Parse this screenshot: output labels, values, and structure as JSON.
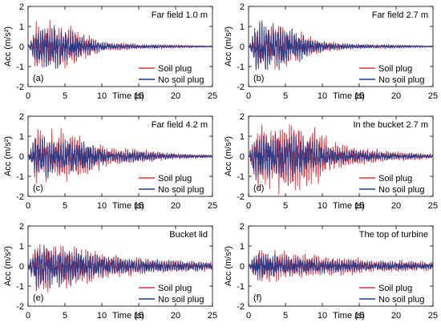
{
  "colors": {
    "soil_plug": "#e8303a",
    "no_soil_plug": "#1f3d8f",
    "axis": "#000000"
  },
  "chart_data": [
    {
      "type": "line",
      "panel_label": "(a)",
      "title": "Far field 1.0 m",
      "xlabel": "Time (s)",
      "ylabel": "Acc (m/s²)",
      "xlim": [
        0,
        25
      ],
      "ylim": [
        -2,
        2
      ],
      "xticks": [
        0,
        5,
        10,
        15,
        20,
        25
      ],
      "yticks": [
        -2,
        -1,
        0,
        1,
        2
      ],
      "legend": "bottom-right",
      "series": [
        {
          "name": "Soil plug",
          "color_key": "soil_plug",
          "peak": 1.3,
          "seed": 11,
          "envelope": [
            [
              0,
              0
            ],
            [
              0.4,
              0.3
            ],
            [
              1,
              1.2
            ],
            [
              3,
              1.0
            ],
            [
              5,
              0.9
            ],
            [
              8,
              0.5
            ],
            [
              10,
              0.2
            ],
            [
              13,
              0.15
            ],
            [
              15,
              0.1
            ],
            [
              20,
              0.08
            ],
            [
              25,
              0.03
            ]
          ]
        },
        {
          "name": "No soil plug",
          "color_key": "no_soil_plug",
          "peak": 1.1,
          "seed": 12,
          "envelope": [
            [
              0,
              0
            ],
            [
              0.4,
              0.3
            ],
            [
              1,
              1.0
            ],
            [
              3,
              1.0
            ],
            [
              5,
              0.85
            ],
            [
              8,
              0.45
            ],
            [
              10,
              0.2
            ],
            [
              13,
              0.12
            ],
            [
              15,
              0.1
            ],
            [
              20,
              0.07
            ],
            [
              25,
              0.03
            ]
          ]
        }
      ]
    },
    {
      "type": "line",
      "panel_label": "(b)",
      "title": "Far field 2.7 m",
      "xlabel": "Time (s)",
      "ylabel": "Acc (m/s²)",
      "xlim": [
        0,
        25
      ],
      "ylim": [
        -2,
        2
      ],
      "xticks": [
        0,
        5,
        10,
        15,
        20,
        25
      ],
      "yticks": [
        -2,
        -1,
        0,
        1,
        2
      ],
      "legend": "bottom-right",
      "series": [
        {
          "name": "Soil plug",
          "color_key": "soil_plug",
          "peak": 1.3,
          "seed": 21,
          "envelope": [
            [
              0,
              0
            ],
            [
              0.4,
              0.3
            ],
            [
              1,
              1.2
            ],
            [
              3,
              1.0
            ],
            [
              5,
              0.9
            ],
            [
              8,
              0.5
            ],
            [
              10,
              0.25
            ],
            [
              13,
              0.15
            ],
            [
              15,
              0.1
            ],
            [
              20,
              0.08
            ],
            [
              25,
              0.03
            ]
          ]
        },
        {
          "name": "No soil plug",
          "color_key": "no_soil_plug",
          "peak": 1.2,
          "seed": 22,
          "envelope": [
            [
              0,
              0
            ],
            [
              0.4,
              0.3
            ],
            [
              1,
              1.1
            ],
            [
              3,
              1.0
            ],
            [
              5,
              0.85
            ],
            [
              8,
              0.45
            ],
            [
              10,
              0.2
            ],
            [
              13,
              0.12
            ],
            [
              15,
              0.1
            ],
            [
              20,
              0.07
            ],
            [
              25,
              0.03
            ]
          ]
        }
      ]
    },
    {
      "type": "line",
      "panel_label": "(c)",
      "title": "Far field 4.2 m",
      "xlabel": "Time (s)",
      "ylabel": "Acc (m/s²)",
      "xlim": [
        0,
        25
      ],
      "ylim": [
        -2,
        2
      ],
      "xticks": [
        0,
        5,
        10,
        15,
        20,
        25
      ],
      "yticks": [
        -2,
        -1,
        0,
        1,
        2
      ],
      "legend": "bottom-right",
      "series": [
        {
          "name": "Soil plug",
          "color_key": "soil_plug",
          "peak": 1.4,
          "seed": 31,
          "envelope": [
            [
              0,
              0
            ],
            [
              0.4,
              0.4
            ],
            [
              1,
              1.1
            ],
            [
              3,
              1.1
            ],
            [
              6,
              1.0
            ],
            [
              9,
              0.7
            ],
            [
              11,
              0.35
            ],
            [
              14,
              0.3
            ],
            [
              16,
              0.25
            ],
            [
              20,
              0.12
            ],
            [
              25,
              0.06
            ]
          ]
        },
        {
          "name": "No soil plug",
          "color_key": "no_soil_plug",
          "peak": 1.1,
          "seed": 32,
          "envelope": [
            [
              0,
              0
            ],
            [
              0.4,
              0.4
            ],
            [
              1,
              1.0
            ],
            [
              3,
              1.0
            ],
            [
              6,
              0.9
            ],
            [
              9,
              0.6
            ],
            [
              11,
              0.3
            ],
            [
              14,
              0.3
            ],
            [
              16,
              0.25
            ],
            [
              20,
              0.12
            ],
            [
              25,
              0.06
            ]
          ]
        }
      ]
    },
    {
      "type": "line",
      "panel_label": "(d)",
      "title": "In the bucket 2.7 m",
      "xlabel": "Time (s)",
      "ylabel": "Acc (m/s²)",
      "xlim": [
        0,
        25
      ],
      "ylim": [
        -2,
        2
      ],
      "xticks": [
        0,
        5,
        10,
        15,
        20,
        25
      ],
      "yticks": [
        -2,
        -1,
        0,
        1,
        2
      ],
      "legend": "bottom-right",
      "series": [
        {
          "name": "Soil plug",
          "color_key": "soil_plug",
          "peak": 1.9,
          "seed": 41,
          "envelope": [
            [
              0,
              0
            ],
            [
              0.4,
              0.5
            ],
            [
              1,
              1.2
            ],
            [
              4,
              1.4
            ],
            [
              6,
              1.5
            ],
            [
              9,
              1.2
            ],
            [
              11,
              0.6
            ],
            [
              14,
              0.4
            ],
            [
              16,
              0.3
            ],
            [
              20,
              0.2
            ],
            [
              25,
              0.1
            ]
          ]
        },
        {
          "name": "No soil plug",
          "color_key": "no_soil_plug",
          "peak": 1.2,
          "seed": 42,
          "envelope": [
            [
              0,
              0
            ],
            [
              0.4,
              0.5
            ],
            [
              1,
              1.1
            ],
            [
              4,
              1.1
            ],
            [
              6,
              1.0
            ],
            [
              9,
              0.8
            ],
            [
              11,
              0.45
            ],
            [
              14,
              0.3
            ],
            [
              16,
              0.25
            ],
            [
              20,
              0.15
            ],
            [
              25,
              0.08
            ]
          ]
        }
      ]
    },
    {
      "type": "line",
      "panel_label": "(e)",
      "title": "Bucket lid",
      "xlabel": "Time (s)",
      "ylabel": "Acc (m/s²)",
      "xlim": [
        0,
        25
      ],
      "ylim": [
        -2,
        2
      ],
      "xticks": [
        0,
        5,
        10,
        15,
        20,
        25
      ],
      "yticks": [
        -2,
        -1,
        0,
        1,
        2
      ],
      "legend": "bottom-right",
      "series": [
        {
          "name": "Soil plug",
          "color_key": "soil_plug",
          "peak": 1.3,
          "seed": 51,
          "envelope": [
            [
              0,
              0
            ],
            [
              0.4,
              0.5
            ],
            [
              1,
              1.2
            ],
            [
              4,
              1.0
            ],
            [
              7,
              0.9
            ],
            [
              10,
              0.6
            ],
            [
              13,
              0.45
            ],
            [
              15,
              0.4
            ],
            [
              18,
              0.3
            ],
            [
              22,
              0.25
            ],
            [
              25,
              0.2
            ]
          ]
        },
        {
          "name": "No soil plug",
          "color_key": "no_soil_plug",
          "peak": 1.1,
          "seed": 52,
          "envelope": [
            [
              0,
              0
            ],
            [
              0.4,
              0.5
            ],
            [
              1,
              1.0
            ],
            [
              4,
              0.95
            ],
            [
              7,
              0.8
            ],
            [
              10,
              0.55
            ],
            [
              13,
              0.4
            ],
            [
              15,
              0.35
            ],
            [
              18,
              0.3
            ],
            [
              22,
              0.25
            ],
            [
              25,
              0.2
            ]
          ]
        }
      ]
    },
    {
      "type": "line",
      "panel_label": "(f)",
      "title": "The top of turbine",
      "xlabel": "Time (s)",
      "ylabel": "Acc (m/s²)",
      "xlim": [
        0,
        25
      ],
      "ylim": [
        -2,
        2
      ],
      "xticks": [
        0,
        5,
        10,
        15,
        20,
        25
      ],
      "yticks": [
        -2,
        -1,
        0,
        1,
        2
      ],
      "legend": "bottom-right",
      "series": [
        {
          "name": "Soil plug",
          "color_key": "soil_plug",
          "peak": 0.8,
          "seed": 61,
          "envelope": [
            [
              0,
              0
            ],
            [
              0.5,
              0.3
            ],
            [
              1.5,
              0.6
            ],
            [
              4,
              0.5
            ],
            [
              7,
              0.4
            ],
            [
              10,
              0.35
            ],
            [
              13,
              0.3
            ],
            [
              16,
              0.25
            ],
            [
              20,
              0.2
            ],
            [
              25,
              0.15
            ]
          ]
        },
        {
          "name": "No soil plug",
          "color_key": "no_soil_plug",
          "peak": 0.7,
          "seed": 62,
          "envelope": [
            [
              0,
              0
            ],
            [
              0.5,
              0.3
            ],
            [
              1.5,
              0.55
            ],
            [
              4,
              0.45
            ],
            [
              7,
              0.35
            ],
            [
              10,
              0.3
            ],
            [
              13,
              0.25
            ],
            [
              16,
              0.2
            ],
            [
              20,
              0.18
            ],
            [
              25,
              0.12
            ]
          ]
        }
      ]
    }
  ]
}
